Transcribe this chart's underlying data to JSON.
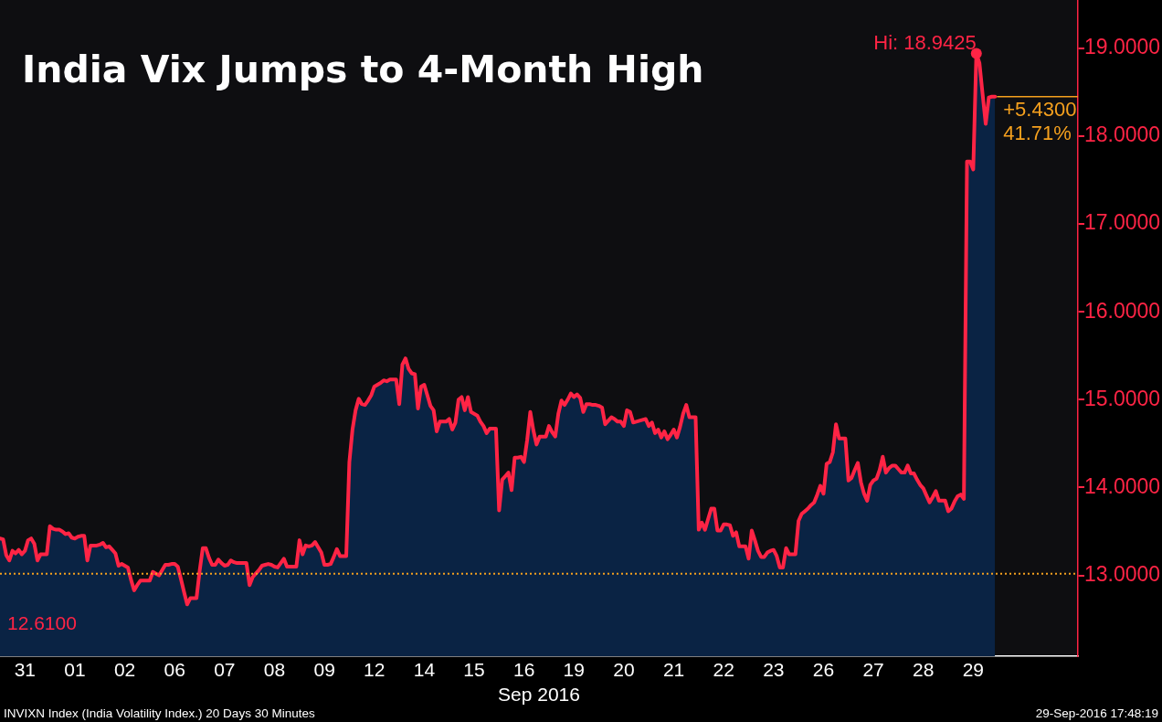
{
  "chart_data": {
    "type": "area",
    "title": "India Vix Jumps to 4-Month High",
    "xlabel": "Sep 2016",
    "categories": [
      null,
      null,
      null,
      null,
      null,
      null,
      null,
      null,
      "31",
      null,
      null,
      null,
      null,
      null,
      null,
      null,
      null,
      null,
      null,
      null,
      null,
      null,
      null,
      null,
      "01",
      null,
      null,
      null,
      null,
      null,
      null,
      null,
      null,
      null,
      null,
      null,
      null,
      null,
      null,
      null,
      "02",
      null,
      null,
      null,
      null,
      null,
      null,
      null,
      null,
      null,
      null,
      null,
      null,
      null,
      null,
      null,
      "06",
      null,
      null,
      null,
      null,
      null,
      null,
      null,
      null,
      null,
      null,
      null,
      null,
      null,
      null,
      null,
      "07",
      null,
      null,
      null,
      null,
      null,
      null,
      null,
      null,
      null,
      null,
      null,
      null,
      null,
      null,
      null,
      "08",
      null,
      null,
      null,
      null,
      null,
      null,
      null,
      null,
      null,
      null,
      null,
      null,
      null,
      null,
      null,
      "09",
      null,
      null,
      null,
      null,
      null,
      null,
      null,
      null,
      null,
      null,
      null,
      null,
      null,
      null,
      null,
      "12",
      null,
      null,
      null,
      null,
      null,
      null,
      null,
      null,
      null,
      null,
      null,
      null,
      null,
      null,
      null,
      "14",
      null,
      null,
      null,
      null,
      null,
      null,
      null,
      null,
      null,
      null,
      null,
      null,
      null,
      null,
      null,
      "15",
      null,
      null,
      null,
      null,
      null,
      null,
      null,
      null,
      null,
      null,
      null,
      null,
      null,
      null,
      null,
      "16",
      null,
      null,
      null,
      null,
      null,
      null,
      null,
      null,
      null,
      null,
      null,
      null,
      null,
      null,
      null,
      "19",
      null,
      null,
      null,
      null,
      null,
      null,
      null,
      null,
      null,
      null,
      null,
      null,
      null,
      null,
      null,
      "20",
      null,
      null,
      null,
      null,
      null,
      null,
      null,
      null,
      null,
      null,
      null,
      null,
      null,
      null,
      null,
      "21",
      null,
      null,
      null,
      null,
      null,
      null,
      null,
      null,
      null,
      null,
      null,
      null,
      null,
      null,
      null,
      "22",
      null,
      null,
      null,
      null,
      null,
      null,
      null,
      null,
      null,
      null,
      null,
      null,
      null,
      null,
      null,
      "23",
      null,
      null,
      null,
      null,
      null,
      null,
      null,
      null,
      null,
      null,
      null,
      null,
      null,
      null,
      null,
      "26",
      null,
      null,
      null,
      null,
      null,
      null,
      null,
      null,
      null,
      null,
      null,
      null,
      null,
      null,
      null,
      "27",
      null,
      null,
      null,
      null,
      null,
      null,
      null,
      null,
      null,
      null,
      null,
      null,
      null,
      null,
      null,
      "28",
      null,
      null,
      null,
      null,
      null,
      null,
      null,
      null,
      null,
      null,
      null,
      null,
      null,
      null,
      null,
      "29",
      null,
      null,
      null,
      null,
      null,
      null,
      null
    ],
    "series": [
      {
        "color": "#0a2344",
        "values": [
          13.42,
          13.41,
          13.23,
          13.17,
          13.28,
          13.25,
          13.29,
          13.24,
          13.28,
          13.4,
          13.42,
          13.36,
          13.17,
          13.24,
          13.24,
          13.24,
          13.56,
          13.53,
          13.52,
          13.52,
          13.5,
          13.47,
          13.48,
          13.43,
          13.42,
          13.44,
          13.45,
          13.45,
          13.17,
          13.34,
          13.34,
          13.34,
          13.35,
          13.37,
          13.32,
          13.33,
          13.29,
          13.25,
          13.11,
          13.13,
          13.11,
          13.09,
          12.95,
          12.83,
          12.89,
          12.94,
          12.94,
          12.94,
          12.94,
          13.04,
          13.02,
          13.0,
          13.06,
          13.12,
          13.12,
          13.13,
          13.13,
          13.1,
          12.96,
          12.81,
          12.67,
          12.74,
          12.74,
          12.74,
          13.05,
          13.31,
          13.31,
          13.2,
          13.12,
          13.12,
          13.18,
          13.14,
          13.11,
          13.12,
          13.17,
          13.15,
          13.14,
          13.14,
          13.14,
          13.14,
          12.89,
          12.98,
          13.02,
          13.06,
          13.11,
          13.12,
          13.13,
          13.12,
          13.1,
          13.09,
          13.14,
          13.19,
          13.1,
          13.1,
          13.1,
          13.1,
          13.4,
          13.24,
          13.34,
          13.33,
          13.34,
          13.38,
          13.32,
          13.26,
          13.12,
          13.12,
          13.13,
          13.21,
          13.3,
          13.22,
          13.22,
          13.22,
          14.29,
          14.66,
          14.88,
          15.01,
          14.95,
          14.94,
          14.99,
          15.05,
          15.15,
          15.17,
          15.19,
          15.22,
          15.21,
          15.23,
          15.23,
          15.23,
          14.95,
          15.4,
          15.47,
          15.35,
          15.3,
          15.29,
          14.9,
          15.15,
          15.17,
          15.05,
          14.93,
          14.88,
          14.64,
          14.75,
          14.75,
          14.75,
          14.78,
          14.66,
          14.74,
          15.0,
          15.03,
          14.88,
          15.03,
          14.86,
          14.84,
          14.82,
          14.75,
          14.7,
          14.62,
          14.67,
          14.67,
          14.67,
          13.74,
          14.09,
          14.13,
          14.17,
          13.97,
          14.34,
          14.34,
          14.35,
          14.29,
          14.54,
          14.86,
          14.65,
          14.49,
          14.58,
          14.58,
          14.58,
          14.7,
          14.63,
          14.58,
          14.84,
          14.99,
          14.94,
          15.0,
          15.07,
          15.03,
          15.06,
          15.02,
          14.86,
          14.95,
          14.95,
          14.94,
          14.94,
          14.93,
          14.91,
          14.72,
          14.76,
          14.8,
          14.78,
          14.75,
          14.75,
          14.7,
          14.88,
          14.86,
          14.74,
          14.75,
          14.76,
          14.77,
          14.78,
          14.7,
          14.74,
          14.62,
          14.66,
          14.57,
          14.64,
          14.55,
          14.6,
          14.66,
          14.57,
          14.69,
          14.84,
          14.94,
          14.8,
          14.8,
          14.8,
          13.52,
          13.6,
          13.52,
          13.64,
          13.76,
          13.76,
          13.51,
          13.51,
          13.58,
          13.58,
          13.57,
          13.45,
          13.49,
          13.33,
          13.33,
          13.33,
          13.19,
          13.51,
          13.4,
          13.28,
          13.21,
          13.21,
          13.26,
          13.28,
          13.29,
          13.22,
          13.09,
          13.09,
          13.31,
          13.24,
          13.24,
          13.24,
          13.62,
          13.7,
          13.73,
          13.76,
          13.8,
          13.83,
          13.92,
          14.02,
          13.93,
          14.27,
          14.29,
          14.4,
          14.72,
          14.56,
          14.56,
          14.56,
          14.08,
          14.11,
          14.2,
          14.28,
          14.06,
          13.93,
          13.85,
          14.03,
          14.08,
          14.1,
          14.2,
          14.35,
          14.17,
          14.22,
          14.25,
          14.25,
          14.21,
          14.17,
          14.17,
          14.25,
          14.16,
          14.16,
          14.09,
          14.03,
          13.99,
          13.91,
          13.83,
          13.89,
          13.96,
          13.85,
          13.85,
          13.85,
          13.73,
          13.76,
          13.84,
          13.9,
          13.92,
          13.87,
          17.71,
          17.71,
          17.62,
          18.9425,
          18.83,
          18.48,
          18.14,
          18.44,
          18.45,
          18.45
        ]
      },
      {
        "type": "line",
        "color": "#ff2445",
        "values": [
          13.42,
          13.41,
          13.23,
          13.17,
          13.28,
          13.25,
          13.29,
          13.24,
          13.28,
          13.4,
          13.42,
          13.36,
          13.17,
          13.24,
          13.24,
          13.24,
          13.56,
          13.53,
          13.52,
          13.52,
          13.5,
          13.47,
          13.48,
          13.43,
          13.42,
          13.44,
          13.45,
          13.45,
          13.17,
          13.34,
          13.34,
          13.34,
          13.35,
          13.37,
          13.32,
          13.33,
          13.29,
          13.25,
          13.11,
          13.13,
          13.11,
          13.09,
          12.95,
          12.83,
          12.89,
          12.94,
          12.94,
          12.94,
          12.94,
          13.04,
          13.02,
          13.0,
          13.06,
          13.12,
          13.12,
          13.13,
          13.13,
          13.1,
          12.96,
          12.81,
          12.67,
          12.74,
          12.74,
          12.74,
          13.05,
          13.31,
          13.31,
          13.2,
          13.12,
          13.12,
          13.18,
          13.14,
          13.11,
          13.12,
          13.17,
          13.15,
          13.14,
          13.14,
          13.14,
          13.14,
          12.89,
          12.98,
          13.02,
          13.06,
          13.11,
          13.12,
          13.13,
          13.12,
          13.1,
          13.09,
          13.14,
          13.19,
          13.1,
          13.1,
          13.1,
          13.1,
          13.4,
          13.24,
          13.34,
          13.33,
          13.34,
          13.38,
          13.32,
          13.26,
          13.12,
          13.12,
          13.13,
          13.21,
          13.3,
          13.22,
          13.22,
          13.22,
          14.29,
          14.66,
          14.88,
          15.01,
          14.95,
          14.94,
          14.99,
          15.05,
          15.15,
          15.17,
          15.19,
          15.22,
          15.21,
          15.23,
          15.23,
          15.23,
          14.95,
          15.4,
          15.47,
          15.35,
          15.3,
          15.29,
          14.9,
          15.15,
          15.17,
          15.05,
          14.93,
          14.88,
          14.64,
          14.75,
          14.75,
          14.75,
          14.78,
          14.66,
          14.74,
          15.0,
          15.03,
          14.88,
          15.03,
          14.86,
          14.84,
          14.82,
          14.75,
          14.7,
          14.62,
          14.67,
          14.67,
          14.67,
          13.74,
          14.09,
          14.13,
          14.17,
          13.97,
          14.34,
          14.34,
          14.35,
          14.29,
          14.54,
          14.86,
          14.65,
          14.49,
          14.58,
          14.58,
          14.58,
          14.7,
          14.63,
          14.58,
          14.84,
          14.99,
          14.94,
          15.0,
          15.07,
          15.03,
          15.06,
          15.02,
          14.86,
          14.95,
          14.95,
          14.94,
          14.94,
          14.93,
          14.91,
          14.72,
          14.76,
          14.8,
          14.78,
          14.75,
          14.75,
          14.7,
          14.88,
          14.86,
          14.74,
          14.75,
          14.76,
          14.77,
          14.78,
          14.7,
          14.74,
          14.62,
          14.66,
          14.57,
          14.64,
          14.55,
          14.6,
          14.66,
          14.57,
          14.69,
          14.84,
          14.94,
          14.8,
          14.8,
          14.8,
          13.52,
          13.6,
          13.52,
          13.64,
          13.76,
          13.76,
          13.51,
          13.51,
          13.58,
          13.58,
          13.57,
          13.45,
          13.49,
          13.33,
          13.33,
          13.33,
          13.19,
          13.51,
          13.4,
          13.28,
          13.21,
          13.21,
          13.26,
          13.28,
          13.29,
          13.22,
          13.09,
          13.09,
          13.31,
          13.24,
          13.24,
          13.24,
          13.62,
          13.7,
          13.73,
          13.76,
          13.8,
          13.83,
          13.92,
          14.02,
          13.93,
          14.27,
          14.29,
          14.4,
          14.72,
          14.56,
          14.56,
          14.56,
          14.08,
          14.11,
          14.2,
          14.28,
          14.06,
          13.93,
          13.85,
          14.03,
          14.08,
          14.1,
          14.2,
          14.35,
          14.17,
          14.22,
          14.25,
          14.25,
          14.21,
          14.17,
          14.17,
          14.25,
          14.16,
          14.16,
          14.09,
          14.03,
          13.99,
          13.91,
          13.83,
          13.89,
          13.96,
          13.85,
          13.85,
          13.85,
          13.73,
          13.76,
          13.84,
          13.9,
          13.92,
          13.87,
          17.71,
          17.71,
          17.62,
          18.9425,
          18.83,
          18.48,
          18.14,
          18.44,
          18.45,
          18.45
        ]
      }
    ],
    "ylim": [
      12.08,
      19.55
    ],
    "yticks": [
      {
        "value": 13,
        "label": "13.0000"
      },
      {
        "value": 14,
        "label": "14.0000"
      },
      {
        "value": 15,
        "label": "15.0000"
      },
      {
        "value": 16,
        "label": "16.0000"
      },
      {
        "value": 17,
        "label": "17.0000"
      },
      {
        "value": 18,
        "label": "18.0000"
      },
      {
        "value": 19,
        "label": "19.0000"
      }
    ],
    "ref_lines": [
      {
        "axis": "y",
        "value": 13.02,
        "color": "#f5a01e",
        "line_style": "dotted"
      }
    ],
    "annotations": [
      "Hi: 18.9425",
      "+5.4300\n41.71%",
      "12.6100",
      "INVIXN Index (India Volatility Index.) 20 Days 30 Minutes",
      "29-Sep-2016 17:48:19"
    ]
  }
}
